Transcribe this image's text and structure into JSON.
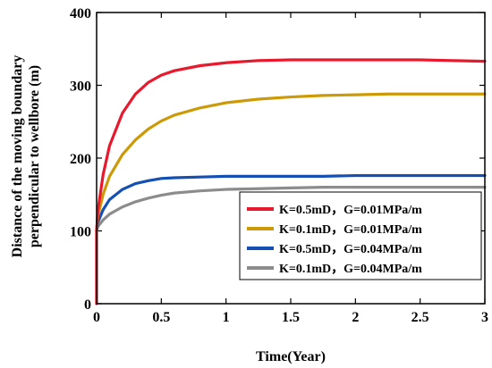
{
  "chart_data": {
    "type": "line",
    "title": "",
    "xlabel": "Time(Year)",
    "ylabel": "Distance of the moving boundary perpendicular to wellbore (m)",
    "ylabel_lines": [
      "Distance of the moving boundary",
      "perpendicular to wellbore (m)"
    ],
    "xlim": [
      0,
      3
    ],
    "ylim": [
      0,
      400
    ],
    "xticks": [
      0,
      0.5,
      1,
      1.5,
      2,
      2.5,
      3
    ],
    "xtick_labels": [
      "0",
      "0.5",
      "1",
      "1.5",
      "2",
      "2.5",
      "3"
    ],
    "yticks": [
      0,
      100,
      200,
      300,
      400
    ],
    "ytick_labels": [
      "0",
      "100",
      "200",
      "300",
      "400"
    ],
    "grid": false,
    "legend_position": "lower-right",
    "series": [
      {
        "name": "K=0.5mD，G=0.01MPa/m",
        "color": "#e8192c",
        "x": [
          0,
          0.01,
          0.05,
          0.1,
          0.2,
          0.3,
          0.4,
          0.5,
          0.6,
          0.8,
          1.0,
          1.25,
          1.5,
          1.75,
          2.0,
          2.25,
          2.5,
          2.75,
          3.0
        ],
        "y": [
          100,
          128,
          177,
          217,
          262,
          288,
          304,
          314,
          320,
          327,
          331,
          334,
          335,
          335,
          335,
          335,
          335,
          334,
          333
        ]
      },
      {
        "name": "K=0.1mD，G=0.01MPa/m",
        "color": "#cc9a06",
        "x": [
          0,
          0.01,
          0.05,
          0.1,
          0.2,
          0.3,
          0.4,
          0.5,
          0.6,
          0.8,
          1.0,
          1.25,
          1.5,
          1.75,
          2.0,
          2.25,
          2.5,
          2.75,
          3.0
        ],
        "y": [
          100,
          120,
          150,
          175,
          205,
          225,
          240,
          251,
          259,
          269,
          276,
          281,
          284,
          286,
          287,
          288,
          288,
          288,
          288
        ]
      },
      {
        "name": "K=0.5mD，G=0.04MPa/m",
        "color": "#1450b4",
        "x": [
          0,
          0.01,
          0.05,
          0.1,
          0.2,
          0.3,
          0.4,
          0.5,
          0.6,
          0.8,
          1.0,
          1.25,
          1.5,
          1.75,
          2.0,
          2.25,
          2.5,
          2.75,
          3.0
        ],
        "y": [
          100,
          112,
          129,
          143,
          157,
          165,
          169,
          172,
          173,
          174,
          175,
          175,
          175,
          175,
          176,
          176,
          176,
          176,
          176
        ]
      },
      {
        "name": "K=0.1mD，G=0.04MPa/m",
        "color": "#8c8c8c",
        "x": [
          0,
          0.01,
          0.05,
          0.1,
          0.2,
          0.3,
          0.4,
          0.5,
          0.6,
          0.8,
          1.0,
          1.25,
          1.5,
          1.75,
          2.0,
          2.25,
          2.5,
          2.75,
          3.0
        ],
        "y": [
          100,
          106,
          115,
          123,
          133,
          140,
          145,
          149,
          152,
          155,
          157,
          158,
          159,
          160,
          160,
          160,
          160,
          160,
          160
        ]
      }
    ]
  }
}
